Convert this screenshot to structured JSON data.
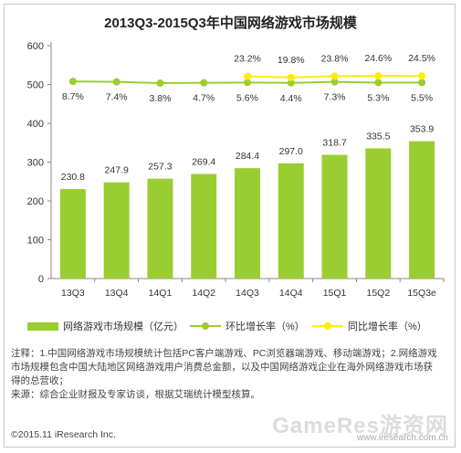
{
  "title": "2013Q3-2015Q3年中国网络游戏市场规模",
  "legend": {
    "bar": "网络游戏市场规模（亿元）",
    "ring": "环比增长率（%）",
    "yoy": "同比增长率（%）"
  },
  "notes": {
    "line1": "注释：1.中国网络游戏市场规模统计包括PC客户端游戏、PC浏览器端游戏、移动端游戏；2.网络游戏",
    "line2": "市场规模包含中国大陆地区网络游戏用户消费总金额，以及中国网络游戏企业在海外网络游戏市场获",
    "line3": "得的总营收；",
    "line4": "来源：综合企业财报及专家访谈，根据艾瑞统计模型核算。"
  },
  "footer": "©2015.11 iResearch Inc.",
  "watermark": "GameRes游资网",
  "watermark_sub": "www.iresearch.com.cn",
  "colors": {
    "bar": "#9acd32",
    "ring": "#9acd32",
    "yoy": "#ffee00",
    "axis": "#888888"
  },
  "chart_data": {
    "type": "bar",
    "title": "2013Q3-2015Q3年中国网络游戏市场规模",
    "categories": [
      "13Q3",
      "13Q4",
      "14Q1",
      "14Q2",
      "14Q3",
      "14Q4",
      "15Q1",
      "15Q2",
      "15Q3e"
    ],
    "ylim": [
      0,
      600
    ],
    "yticks": [
      0,
      100,
      200,
      300,
      400,
      500,
      600
    ],
    "series": [
      {
        "name": "网络游戏市场规模（亿元）",
        "type": "bar",
        "values": [
          230.8,
          247.9,
          257.3,
          269.4,
          284.4,
          297.0,
          318.7,
          335.5,
          353.9
        ],
        "labels": [
          "230.8",
          "247.9",
          "257.3",
          "269.4",
          "284.4",
          "297.0",
          "318.7",
          "335.5",
          "353.9"
        ]
      },
      {
        "name": "环比增长率（%）",
        "type": "line",
        "values": [
          8.7,
          7.4,
          3.8,
          4.7,
          5.6,
          4.4,
          7.3,
          5.3,
          5.5
        ],
        "labels": [
          "8.7%",
          "7.4%",
          "3.8%",
          "4.7%",
          "5.6%",
          "4.4%",
          "7.3%",
          "5.3%",
          "5.5%"
        ]
      },
      {
        "name": "同比增长率（%）",
        "type": "line",
        "values": [
          null,
          null,
          null,
          null,
          23.2,
          19.8,
          23.8,
          24.6,
          24.5
        ],
        "labels": [
          "",
          "",
          "",
          "",
          "23.2%",
          "19.8%",
          "23.8%",
          "24.6%",
          "24.5%"
        ]
      }
    ],
    "grid": false,
    "legend_position": "bottom"
  }
}
